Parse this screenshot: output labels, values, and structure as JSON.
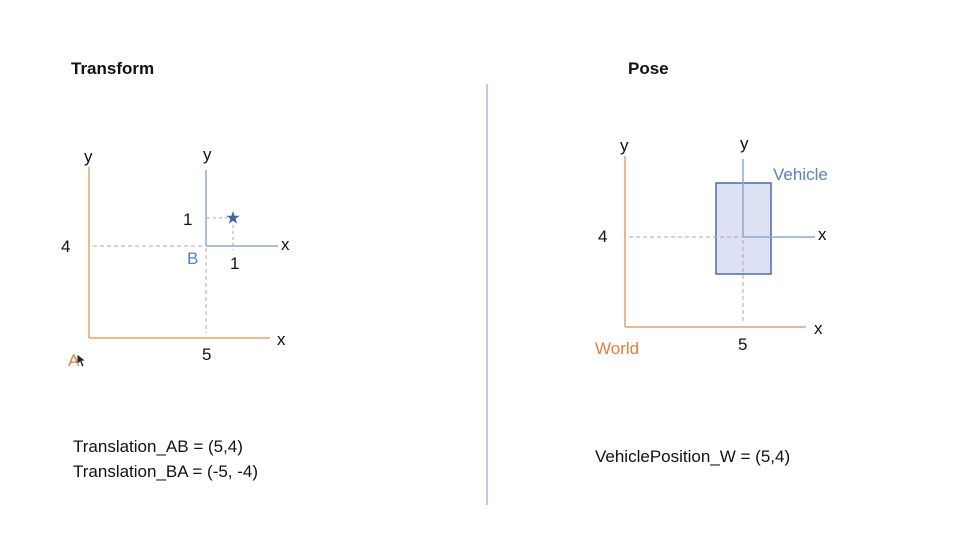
{
  "slide": {
    "left": {
      "heading": "Transform",
      "frame_a": {
        "name": "A",
        "x_label": "x",
        "y_label": "y"
      },
      "frame_b": {
        "name": "B",
        "x_label": "x",
        "y_label": "y"
      },
      "origin_b_x_tick": "5",
      "origin_b_y_tick": "4",
      "star_x_tick": "1",
      "star_y_tick": "1",
      "star_icon": "star-icon",
      "equations": [
        "Translation_AB = (5,4)",
        "Translation_BA = (-5, -4)"
      ]
    },
    "right": {
      "heading": "Pose",
      "world": {
        "name": "World",
        "x_label": "x",
        "y_label": "y"
      },
      "vehicle": {
        "name": "Vehicle",
        "x_label": "x",
        "y_label": "y"
      },
      "vehicle_x_tick": "5",
      "vehicle_y_tick": "4",
      "equation": "VehiclePosition_W = (5,4)"
    },
    "colors": {
      "orange": "#E8A070",
      "orange_text": "#E07F3A",
      "blue": "#8FA9CF",
      "blue_text": "#5B7FC0",
      "star": "#4A63A8",
      "divider": "#A7BCDC",
      "vehicle_fill": "#DCE2F3",
      "vehicle_stroke": "#5068A8",
      "dash": "#A8A8A8"
    }
  }
}
